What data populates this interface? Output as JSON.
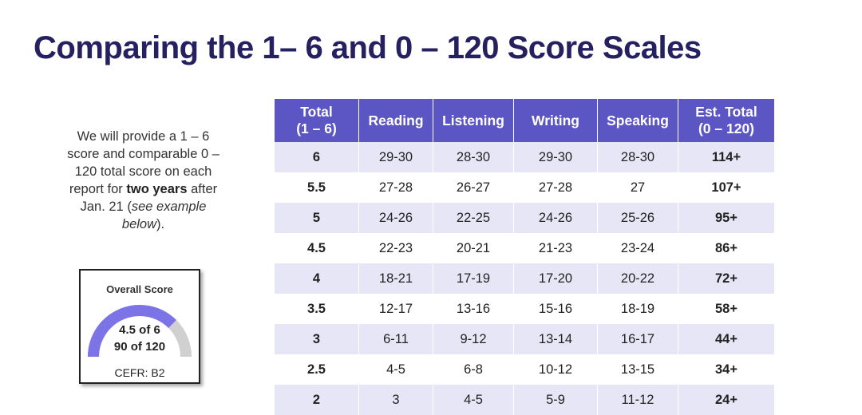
{
  "title": "Comparing the 1– 6 and 0 – 120 Score Scales",
  "note": {
    "line_pre": "We will provide a 1 – 6 score and comparable 0 – 120 total score on each report for ",
    "bold": "two years",
    "after": " after Jan. 21 (",
    "italic": "see example below",
    "end": ")."
  },
  "card": {
    "title": "Overall Score",
    "score_primary": "4.5 of 6",
    "score_secondary": "90 of 120",
    "cefr": "CEFR: B2",
    "fill_fraction": 0.75,
    "fill_color": "#7b73e6",
    "track_color": "#d0d0d0"
  },
  "table": {
    "headers": [
      [
        "Total",
        "(1 – 6)"
      ],
      [
        "Reading"
      ],
      [
        "Listening"
      ],
      [
        "Writing"
      ],
      [
        "Speaking"
      ],
      [
        "Est. Total",
        "(0 – 120)"
      ]
    ],
    "rows": [
      [
        "6",
        "29-30",
        "28-30",
        "29-30",
        "28-30",
        "114+"
      ],
      [
        "5.5",
        "27-28",
        "26-27",
        "27-28",
        "27",
        "107+"
      ],
      [
        "5",
        "24-26",
        "22-25",
        "24-26",
        "25-26",
        "95+"
      ],
      [
        "4.5",
        "22-23",
        "20-21",
        "21-23",
        "23-24",
        "86+"
      ],
      [
        "4",
        "18-21",
        "17-19",
        "17-20",
        "20-22",
        "72+"
      ],
      [
        "3.5",
        "12-17",
        "13-16",
        "15-16",
        "18-19",
        "58+"
      ],
      [
        "3",
        "6-11",
        "9-12",
        "13-14",
        "16-17",
        "44+"
      ],
      [
        "2.5",
        "4-5",
        "6-8",
        "10-12",
        "13-15",
        "34+"
      ],
      [
        "2",
        "3",
        "4-5",
        "5-9",
        "11-12",
        "24+"
      ]
    ]
  },
  "colors": {
    "title": "#25205f",
    "header_bg": "#5c56c4",
    "row_shade": "#e6e6f7"
  }
}
